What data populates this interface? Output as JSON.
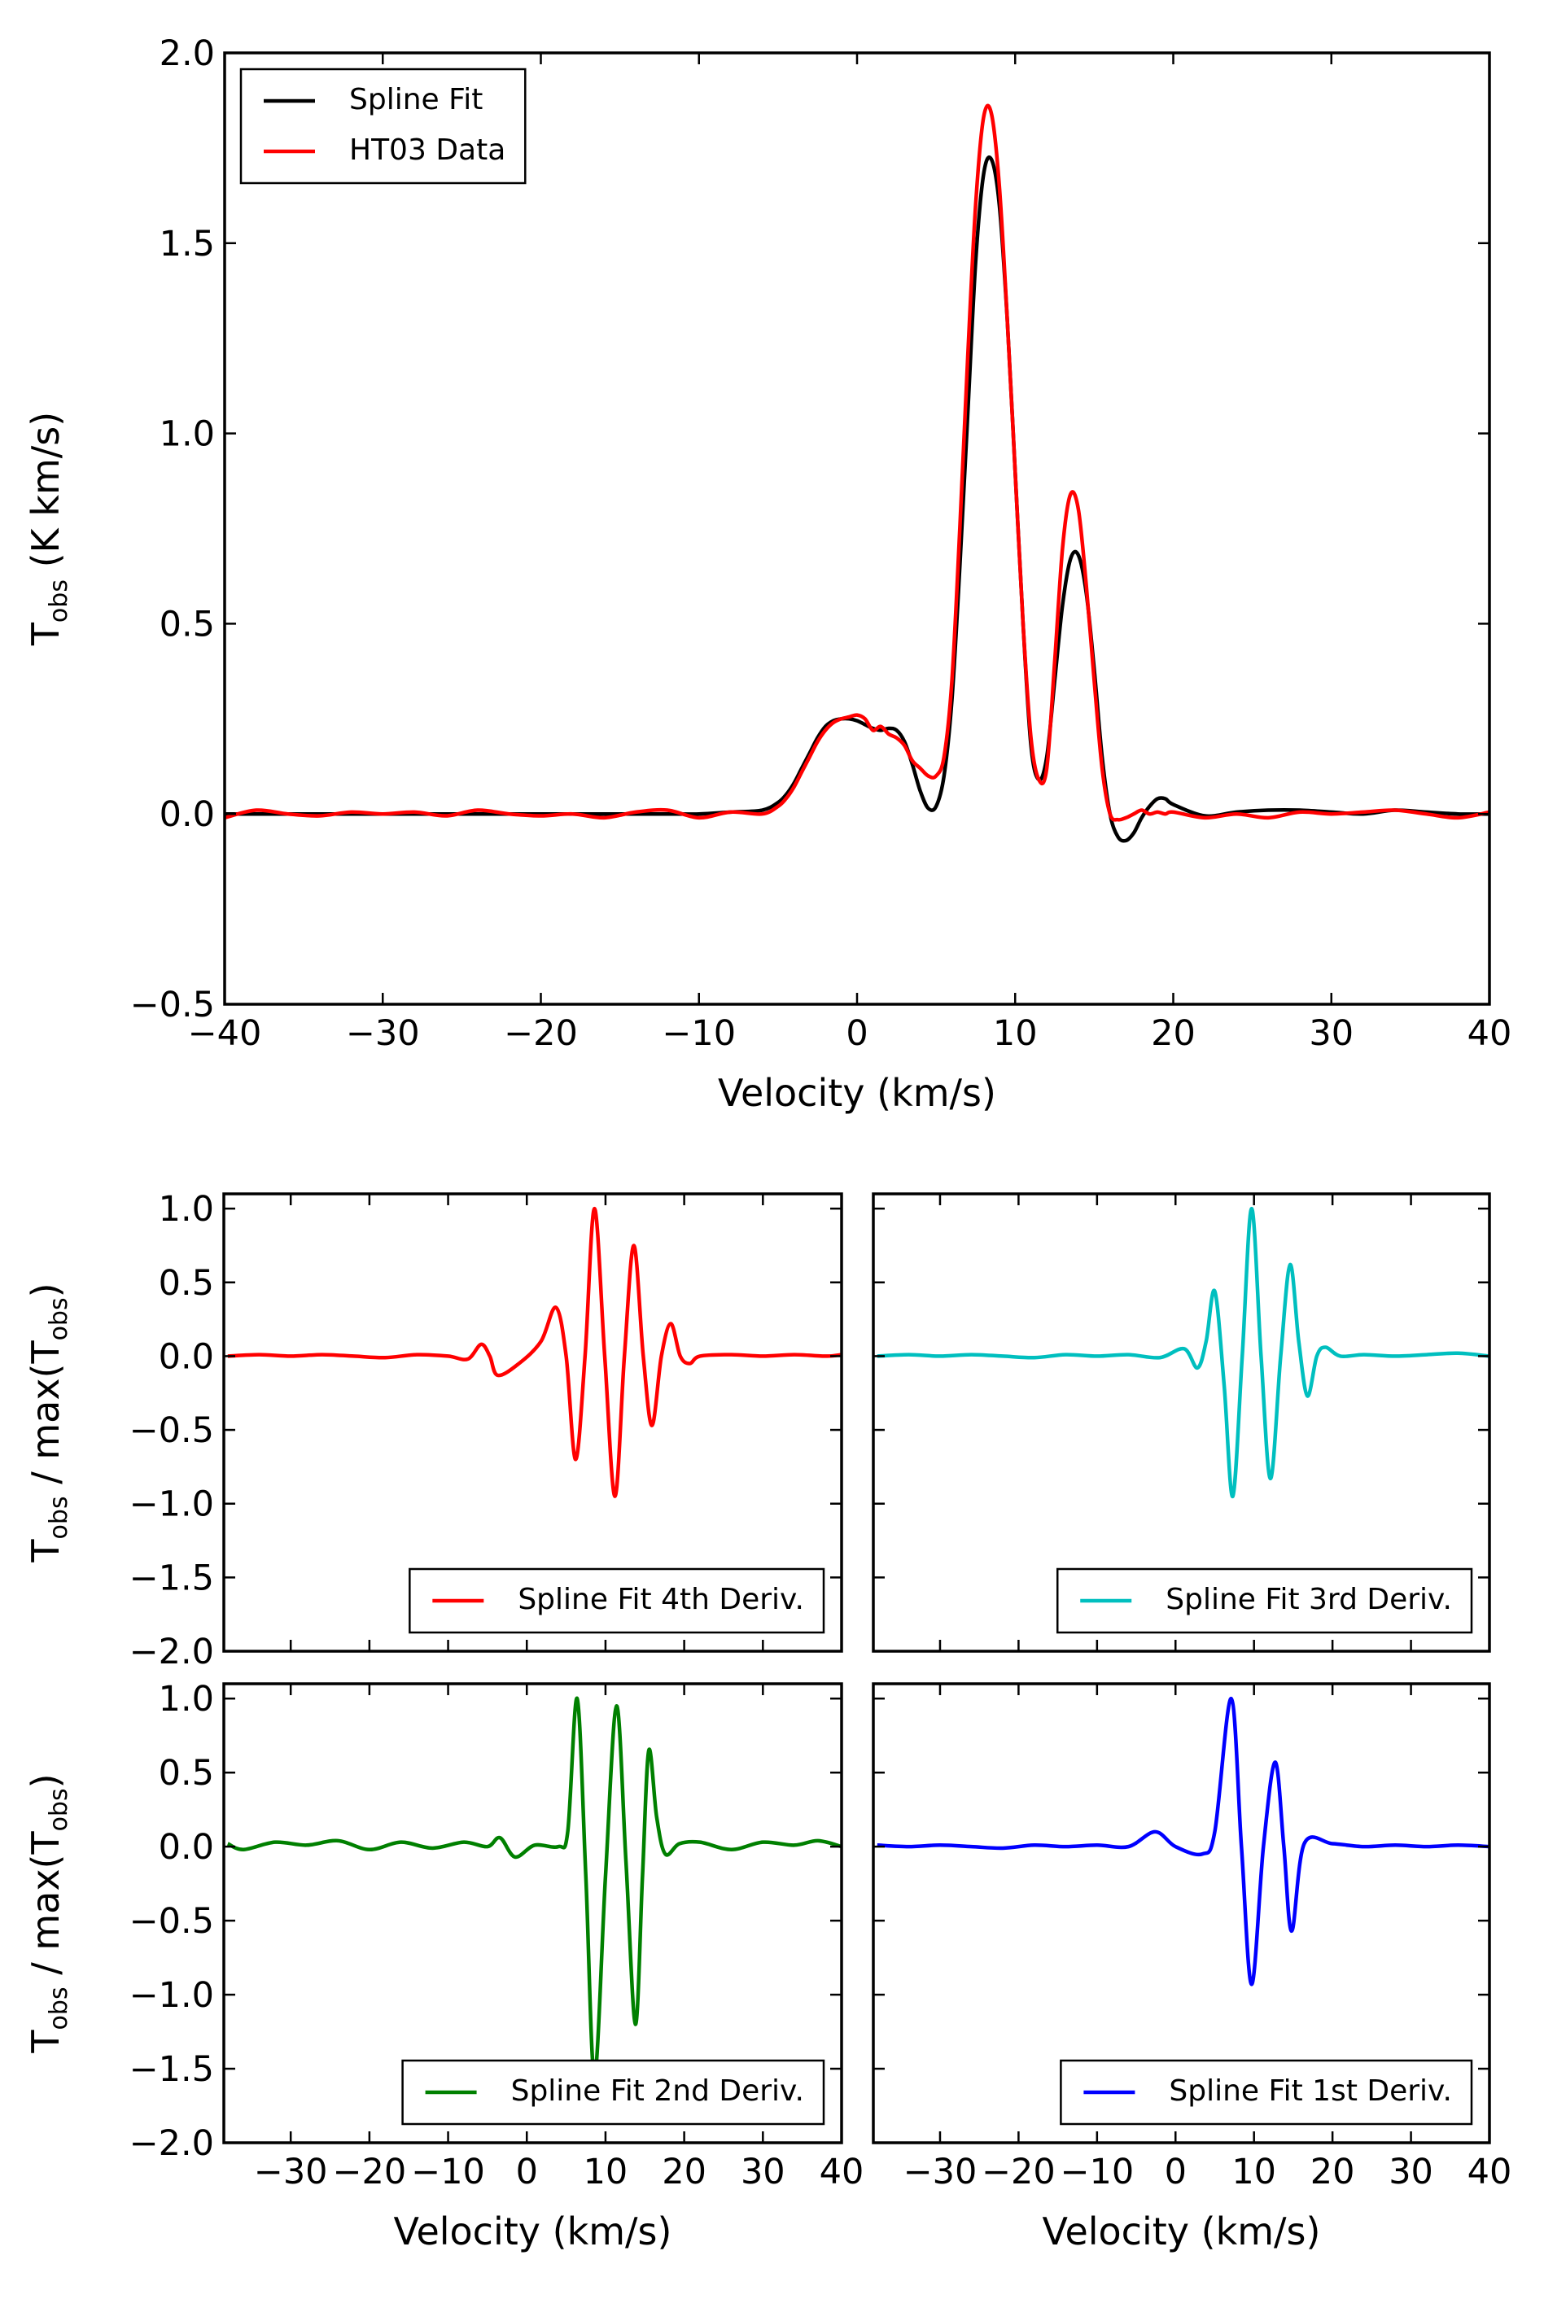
{
  "chart_data": [
    {
      "type": "line",
      "xlabel": "Velocity (km/s)",
      "ylabel": [
        {
          "text": "T"
        },
        {
          "text": "obs",
          "sub": true
        },
        {
          "text": " (K km/s)"
        }
      ],
      "xlim": [
        -40,
        40
      ],
      "ylim": [
        -0.5,
        2.0
      ],
      "xticks": [
        {
          "value": -40,
          "label": "−40"
        },
        {
          "value": -30,
          "label": "−30"
        },
        {
          "value": -20,
          "label": "−20"
        },
        {
          "value": -10,
          "label": "−10"
        },
        0,
        10,
        20,
        30,
        40
      ],
      "yticks": [
        {
          "value": -0.5,
          "label": "−0.5"
        },
        {
          "value": 0.0,
          "label": "0.0"
        },
        0.5,
        {
          "value": 1.0,
          "label": "1.0"
        },
        1.5,
        {
          "value": 2.0,
          "label": "2.0"
        }
      ],
      "tick_labels": {
        "x": true,
        "y": true
      },
      "legend": "upper left",
      "grid": false,
      "x": [
        -40,
        -38,
        -36,
        -34,
        -32,
        -30,
        -28,
        -26,
        -24,
        -22,
        -20,
        -18,
        -16,
        -14,
        -12,
        -10,
        -8,
        -6,
        -5,
        -4.5,
        -4,
        -3.5,
        -3,
        -2.5,
        -2,
        -1.5,
        -1,
        -0.5,
        0,
        0.5,
        1,
        1.5,
        2,
        2.5,
        3,
        3.5,
        4,
        4.5,
        5,
        5.5,
        6,
        6.5,
        7,
        7.5,
        8,
        8.5,
        9,
        9.5,
        10,
        10.5,
        11,
        11.5,
        12,
        12.5,
        13,
        13.5,
        14,
        14.5,
        15,
        15.5,
        16,
        16.5,
        17,
        17.5,
        18,
        18.5,
        19,
        19.5,
        20,
        22,
        24,
        26,
        28,
        30,
        32,
        34,
        36,
        38,
        40
      ],
      "series": [
        {
          "name": "Spline Fit",
          "color": "#000000",
          "values": [
            0,
            0,
            0,
            0,
            0,
            0,
            0,
            0,
            0,
            0,
            0,
            0,
            0,
            0,
            0,
            0,
            0.005,
            0.01,
            0.03,
            0.05,
            0.08,
            0.12,
            0.16,
            0.2,
            0.23,
            0.245,
            0.25,
            0.25,
            0.245,
            0.235,
            0.225,
            0.22,
            0.225,
            0.22,
            0.19,
            0.13,
            0.06,
            0.015,
            0.02,
            0.1,
            0.3,
            0.65,
            1.05,
            1.45,
            1.68,
            1.72,
            1.6,
            1.3,
            0.9,
            0.5,
            0.18,
            0.09,
            0.15,
            0.35,
            0.55,
            0.67,
            0.68,
            0.58,
            0.38,
            0.15,
            0.0,
            -0.06,
            -0.07,
            -0.05,
            -0.01,
            0.02,
            0.04,
            0.04,
            0.025,
            -0.005,
            0.005,
            0.01,
            0.01,
            0.005,
            0,
            0.01,
            0.005,
            0,
            0
          ]
        },
        {
          "name": "HT03 Data",
          "color": "#ff0000",
          "values": [
            -0.01,
            0.01,
            0,
            -0.005,
            0.005,
            0,
            0.005,
            -0.005,
            0.01,
            0,
            -0.005,
            0,
            -0.01,
            0.005,
            0.01,
            -0.01,
            0.005,
            0,
            0.02,
            0.04,
            0.07,
            0.11,
            0.15,
            0.19,
            0.22,
            0.24,
            0.25,
            0.255,
            0.26,
            0.25,
            0.22,
            0.23,
            0.21,
            0.2,
            0.18,
            0.14,
            0.12,
            0.1,
            0.1,
            0.15,
            0.35,
            0.75,
            1.2,
            1.6,
            1.83,
            1.84,
            1.65,
            1.3,
            0.9,
            0.5,
            0.2,
            0.09,
            0.12,
            0.4,
            0.7,
            0.84,
            0.8,
            0.6,
            0.35,
            0.12,
            0,
            -0.015,
            -0.01,
            0,
            0.01,
            0,
            0.005,
            0,
            0.005,
            -0.01,
            0,
            -0.01,
            0.005,
            0,
            0.005,
            0.01,
            0,
            -0.01,
            0.005
          ]
        }
      ]
    },
    {
      "type": "line",
      "ylabel": [
        {
          "text": "T"
        },
        {
          "text": "obs",
          "sub": true
        },
        {
          "text": " / max(T"
        },
        {
          "text": "obs",
          "sub": true
        },
        {
          "text": ")"
        }
      ],
      "xlim": [
        -38.5,
        40
      ],
      "ylim": [
        -2.0,
        1.1
      ],
      "xticks": [
        -30,
        -20,
        -10,
        0,
        10,
        20,
        30,
        40
      ],
      "yticks": [
        {
          "value": 1.0,
          "label": "1.0"
        },
        0.5,
        {
          "value": 0.0,
          "label": "0.0"
        },
        {
          "value": -0.5,
          "label": "−0.5"
        },
        {
          "value": -1.0,
          "label": "−1.0"
        },
        {
          "value": -1.5,
          "label": "−1.5"
        },
        {
          "value": -2.0,
          "label": "−2.0"
        }
      ],
      "tick_labels": {
        "x": false,
        "y": true
      },
      "legend": "lower right",
      "grid": false,
      "x": [
        -38,
        -34,
        -30,
        -26,
        -22,
        -18,
        -14,
        -10,
        -7.5,
        -5.8,
        -4.7,
        -3.7,
        -1,
        1.8,
        3.7,
        5,
        6.2,
        7.4,
        8.6,
        9.9,
        11.2,
        12.4,
        13.6,
        14.8,
        15.9,
        17.1,
        18.3,
        19.5,
        20.7,
        22,
        26,
        30,
        34,
        38,
        40
      ],
      "series": [
        {
          "name": "Spline Fit 4th Deriv.",
          "color": "#ff0000",
          "values": [
            0,
            0.01,
            0,
            0.01,
            0,
            -0.01,
            0.01,
            0,
            -0.02,
            0.08,
            0,
            -0.13,
            -0.05,
            0.1,
            0.33,
            0,
            -0.7,
            0,
            1.0,
            0,
            -0.95,
            0,
            0.75,
            0,
            -0.47,
            0,
            0.22,
            0,
            -0.05,
            0,
            0.01,
            0,
            0.01,
            0,
            0.01
          ]
        }
      ]
    },
    {
      "type": "line",
      "xlim": [
        -38.5,
        40
      ],
      "ylim": [
        -2.0,
        1.1
      ],
      "xticks": [
        -30,
        -20,
        -10,
        0,
        10,
        20,
        30,
        40
      ],
      "yticks": [
        1.0,
        0.5,
        0.0,
        -0.5,
        -1.0,
        -1.5,
        -2.0
      ],
      "tick_labels": {
        "x": false,
        "y": false
      },
      "legend": "lower right",
      "grid": false,
      "x": [
        -38,
        -34,
        -30,
        -26,
        -22,
        -18,
        -14,
        -10,
        -6,
        -2,
        1.1,
        2.8,
        3.9,
        5.0,
        6.2,
        7.3,
        8.5,
        9.7,
        10.9,
        12.1,
        13.4,
        14.6,
        15.7,
        16.8,
        18,
        19.1,
        21,
        24,
        28,
        32,
        36,
        40
      ],
      "series": [
        {
          "name": "Spline Fit 3rd Deriv.",
          "color": "#00bfbf",
          "values": [
            0,
            0.01,
            0,
            0.01,
            0,
            -0.01,
            0.01,
            0,
            0.01,
            -0.01,
            0.05,
            -0.08,
            0.1,
            0.44,
            -0.2,
            -0.95,
            0,
            1.0,
            0,
            -0.83,
            0,
            0.62,
            0.1,
            -0.27,
            0,
            0.06,
            0,
            0.01,
            0,
            0.01,
            0.02,
            0
          ]
        }
      ]
    },
    {
      "type": "line",
      "xlabel": "Velocity (km/s)",
      "ylabel": [
        {
          "text": "T"
        },
        {
          "text": "obs",
          "sub": true
        },
        {
          "text": " / max(T"
        },
        {
          "text": "obs",
          "sub": true
        },
        {
          "text": ")"
        }
      ],
      "xlim": [
        -38.5,
        40
      ],
      "ylim": [
        -2.0,
        1.1
      ],
      "xticks": [
        {
          "value": -30,
          "label": "−30"
        },
        {
          "value": -20,
          "label": "−20"
        },
        {
          "value": -10,
          "label": "−10"
        },
        0,
        10,
        20,
        30,
        40
      ],
      "yticks": [
        {
          "value": 1.0,
          "label": "1.0"
        },
        0.5,
        {
          "value": 0.0,
          "label": "0.0"
        },
        {
          "value": -0.5,
          "label": "−0.5"
        },
        {
          "value": -1.0,
          "label": "−1.0"
        },
        {
          "value": -1.5,
          "label": "−1.5"
        },
        {
          "value": -2.0,
          "label": "−2.0"
        }
      ],
      "tick_labels": {
        "x": true,
        "y": true
      },
      "legend": "lower right",
      "grid": false,
      "x": [
        -38,
        -36,
        -32,
        -28,
        -24,
        -20,
        -16,
        -12,
        -8,
        -5,
        -3.4,
        -1.5,
        1,
        4,
        5.2,
        6.4,
        7.5,
        8.6,
        10,
        11.4,
        12.6,
        13.8,
        14.7,
        15.5,
        16.5,
        17.6,
        19.4,
        22,
        26,
        30,
        34,
        37,
        40
      ],
      "series": [
        {
          "name": "Spline Fit 2nd Deriv.",
          "color": "#008000",
          "values": [
            0.02,
            -0.02,
            0.03,
            0.01,
            0.04,
            -0.02,
            0.03,
            -0.01,
            0.03,
            0,
            0.06,
            -0.07,
            0.01,
            0,
            0.1,
            1.0,
            -0.2,
            -1.55,
            -0.2,
            0.95,
            -0.1,
            -1.2,
            -0.2,
            0.65,
            0.2,
            -0.05,
            0.02,
            0.03,
            -0.02,
            0.03,
            0.01,
            0.04,
            0
          ]
        }
      ]
    },
    {
      "type": "line",
      "xlabel": "Velocity (km/s)",
      "xlim": [
        -38.5,
        40
      ],
      "ylim": [
        -2.0,
        1.1
      ],
      "xticks": [
        {
          "value": -30,
          "label": "−30"
        },
        {
          "value": -20,
          "label": "−20"
        },
        {
          "value": -10,
          "label": "−10"
        },
        0,
        10,
        20,
        30,
        40
      ],
      "yticks": [
        1.0,
        0.5,
        0.0,
        -0.5,
        -1.0,
        -1.5,
        -2.0
      ],
      "tick_labels": {
        "x": true,
        "y": false
      },
      "legend": "lower right",
      "grid": false,
      "x": [
        -38,
        -34,
        -30,
        -26,
        -22,
        -18,
        -14,
        -10,
        -6,
        -2.6,
        0,
        3.4,
        5,
        7.1,
        8.4,
        9.7,
        11.2,
        12.7,
        13.8,
        14.8,
        16.4,
        20,
        24,
        28,
        32,
        36,
        40
      ],
      "series": [
        {
          "name": "Spline Fit 1st Deriv.",
          "color": "#0000ff",
          "values": [
            0.01,
            0,
            0.01,
            0,
            -0.01,
            0.01,
            0,
            0.01,
            0,
            0.1,
            0,
            -0.05,
            0.1,
            1.0,
            0,
            -0.93,
            0,
            0.57,
            0,
            -0.57,
            0.02,
            0.02,
            0,
            0.01,
            0,
            0.01,
            0
          ]
        }
      ]
    }
  ]
}
